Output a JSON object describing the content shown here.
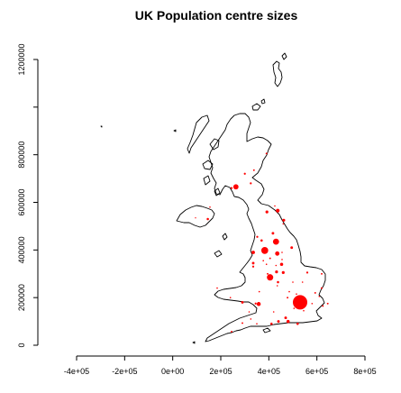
{
  "title": "UK Population centre sizes",
  "chart_data": {
    "type": "scatter",
    "title": "UK Population centre sizes",
    "xlabel": "",
    "ylabel": "",
    "xlim": [
      -400000,
      800000
    ],
    "ylim": [
      0,
      1250000
    ],
    "x_ticks": [
      -400000,
      -200000,
      0,
      200000,
      400000,
      600000,
      800000
    ],
    "x_tick_labels": [
      "-4e+05",
      "-2e+05",
      "0e+00",
      "2e+05",
      "4e+05",
      "6e+05",
      "8e+05"
    ],
    "y_ticks": [
      0,
      200000,
      400000,
      600000,
      800000,
      1000000,
      1200000
    ],
    "y_tick_labels": [
      "0",
      "200000",
      "400000",
      "600000",
      "800000",
      "",
      "1200000"
    ],
    "marker_color": "#ff0000",
    "outline_color": "#000000",
    "series": [
      {
        "points": [
          {
            "x": 530000,
            "y": 180000,
            "size": 5.0
          },
          {
            "x": 405000,
            "y": 285000,
            "size": 2.2
          },
          {
            "x": 383000,
            "y": 398000,
            "size": 2.4
          },
          {
            "x": 430000,
            "y": 435000,
            "size": 2.1
          },
          {
            "x": 263000,
            "y": 665000,
            "size": 1.8
          },
          {
            "x": 435000,
            "y": 385000,
            "size": 1.5
          },
          {
            "x": 437000,
            "y": 565000,
            "size": 1.3
          },
          {
            "x": 358000,
            "y": 173000,
            "size": 1.4
          },
          {
            "x": 335000,
            "y": 390000,
            "size": 1.2
          },
          {
            "x": 453000,
            "y": 340000,
            "size": 1.1
          },
          {
            "x": 460000,
            "y": 305000,
            "size": 1.0
          },
          {
            "x": 495000,
            "y": 410000,
            "size": 0.9
          },
          {
            "x": 462000,
            "y": 525000,
            "size": 1.0
          },
          {
            "x": 392000,
            "y": 560000,
            "size": 1.0
          },
          {
            "x": 432000,
            "y": 308000,
            "size": 1.0
          },
          {
            "x": 438000,
            "y": 265000,
            "size": 0.8
          },
          {
            "x": 335000,
            "y": 345000,
            "size": 0.9
          },
          {
            "x": 417000,
            "y": 470000,
            "size": 0.9
          },
          {
            "x": 480000,
            "y": 100000,
            "size": 1.1
          },
          {
            "x": 470000,
            "y": 115000,
            "size": 0.9
          },
          {
            "x": 440000,
            "y": 100000,
            "size": 0.9
          },
          {
            "x": 411000,
            "y": 90000,
            "size": 0.8
          },
          {
            "x": 290000,
            "y": 180000,
            "size": 0.9
          },
          {
            "x": 335000,
            "y": 330000,
            "size": 0.7
          },
          {
            "x": 520000,
            "y": 90000,
            "size": 0.8
          },
          {
            "x": 345000,
            "y": 175000,
            "size": 0.7
          },
          {
            "x": 370000,
            "y": 440000,
            "size": 0.8
          },
          {
            "x": 352000,
            "y": 455000,
            "size": 0.7
          },
          {
            "x": 325000,
            "y": 680000,
            "size": 0.7
          },
          {
            "x": 245000,
            "y": 660000,
            "size": 0.7
          },
          {
            "x": 338000,
            "y": 735000,
            "size": 0.6
          },
          {
            "x": 300000,
            "y": 720000,
            "size": 0.7
          },
          {
            "x": 390000,
            "y": 805000,
            "size": 0.6
          },
          {
            "x": 146000,
            "y": 530000,
            "size": 0.8
          },
          {
            "x": 155000,
            "y": 580000,
            "size": 0.5
          },
          {
            "x": 95000,
            "y": 535000,
            "size": 0.4
          },
          {
            "x": 560000,
            "y": 305000,
            "size": 0.7
          },
          {
            "x": 620000,
            "y": 300000,
            "size": 0.6
          },
          {
            "x": 620000,
            "y": 240000,
            "size": 0.6
          },
          {
            "x": 593000,
            "y": 220000,
            "size": 0.6
          },
          {
            "x": 645000,
            "y": 175000,
            "size": 0.6
          },
          {
            "x": 625000,
            "y": 165000,
            "size": 0.6
          },
          {
            "x": 478000,
            "y": 200000,
            "size": 0.6
          },
          {
            "x": 485000,
            "y": 225000,
            "size": 0.5
          },
          {
            "x": 500000,
            "y": 265000,
            "size": 0.5
          },
          {
            "x": 455000,
            "y": 390000,
            "size": 0.5
          },
          {
            "x": 405000,
            "y": 365000,
            "size": 0.6
          },
          {
            "x": 377000,
            "y": 355000,
            "size": 0.5
          },
          {
            "x": 390000,
            "y": 340000,
            "size": 0.5
          },
          {
            "x": 395000,
            "y": 300000,
            "size": 0.6
          },
          {
            "x": 245000,
            "y": 57000,
            "size": 0.6
          },
          {
            "x": 290000,
            "y": 93000,
            "size": 0.6
          },
          {
            "x": 350000,
            "y": 90000,
            "size": 0.5
          },
          {
            "x": 325000,
            "y": 110000,
            "size": 0.5
          },
          {
            "x": 318000,
            "y": 140000,
            "size": 0.5
          },
          {
            "x": 185000,
            "y": 240000,
            "size": 0.5
          },
          {
            "x": 240000,
            "y": 200000,
            "size": 0.5
          },
          {
            "x": 360000,
            "y": 225000,
            "size": 0.5
          },
          {
            "x": 420000,
            "y": 140000,
            "size": 0.5
          },
          {
            "x": 505000,
            "y": 155000,
            "size": 0.5
          },
          {
            "x": 545000,
            "y": 145000,
            "size": 0.5
          },
          {
            "x": 580000,
            "y": 175000,
            "size": 0.5
          },
          {
            "x": 610000,
            "y": 205000,
            "size": 0.5
          },
          {
            "x": 460000,
            "y": 510000,
            "size": 0.5
          },
          {
            "x": 425000,
            "y": 585000,
            "size": 0.5
          },
          {
            "x": 430000,
            "y": 335000,
            "size": 0.5
          },
          {
            "x": 455000,
            "y": 360000,
            "size": 0.5
          },
          {
            "x": 435000,
            "y": 250000,
            "size": 0.5
          },
          {
            "x": 515000,
            "y": 215000,
            "size": 0.5
          },
          {
            "x": 540000,
            "y": 265000,
            "size": 0.5
          }
        ]
      }
    ]
  }
}
